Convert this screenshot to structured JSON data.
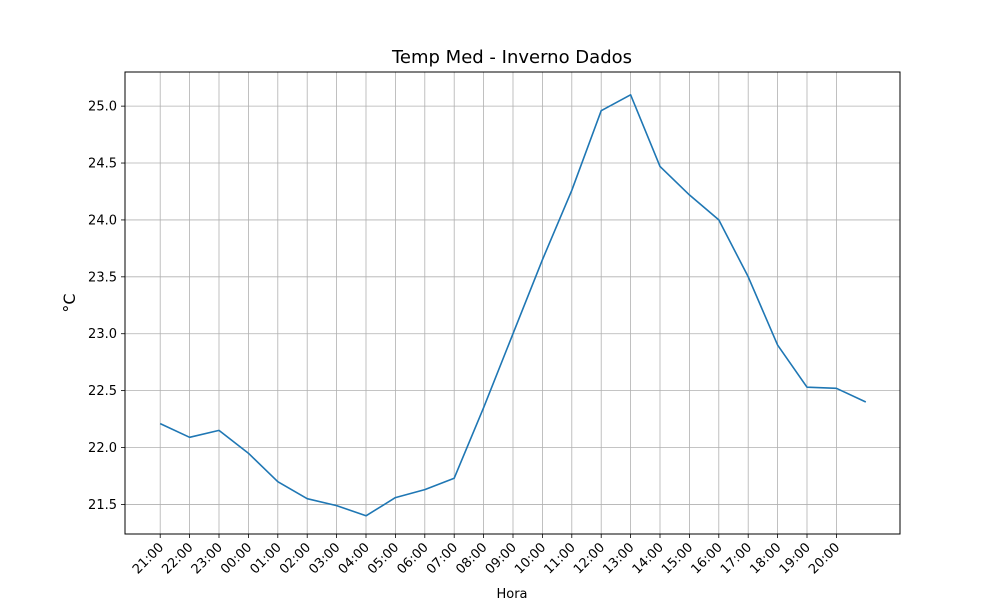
{
  "chart_data": {
    "type": "line",
    "title": "Temp Med - Inverno Dados",
    "xlabel": "Hora",
    "ylabel": "°C",
    "grid": true,
    "line_color": "#1f77b4",
    "x_ticks": [
      "21:00",
      "22:00",
      "23:00",
      "00:00",
      "01:00",
      "02:00",
      "03:00",
      "04:00",
      "05:00",
      "06:00",
      "07:00",
      "08:00",
      "09:00",
      "10:00",
      "11:00",
      "12:00",
      "13:00",
      "14:00",
      "15:00",
      "16:00",
      "17:00",
      "18:00",
      "19:00",
      "20:00"
    ],
    "y_ticks": [
      "21.5",
      "22.0",
      "22.5",
      "23.0",
      "23.5",
      "24.0",
      "24.5",
      "25.0"
    ],
    "ylim": [
      21.24,
      25.3
    ],
    "series": [
      {
        "x": [
          0,
          1,
          2,
          3,
          4,
          5,
          6,
          7,
          8,
          9,
          10,
          11,
          12,
          13,
          14,
          15,
          16,
          17,
          18,
          19,
          20,
          21,
          22,
          23,
          24
        ],
        "values": [
          22.21,
          22.09,
          22.15,
          21.95,
          21.7,
          21.55,
          21.49,
          21.4,
          21.56,
          21.63,
          21.73,
          22.35,
          23.0,
          23.65,
          24.26,
          24.96,
          25.1,
          24.47,
          24.22,
          24.0,
          23.5,
          22.9,
          22.53,
          22.52,
          22.4
        ]
      }
    ]
  }
}
